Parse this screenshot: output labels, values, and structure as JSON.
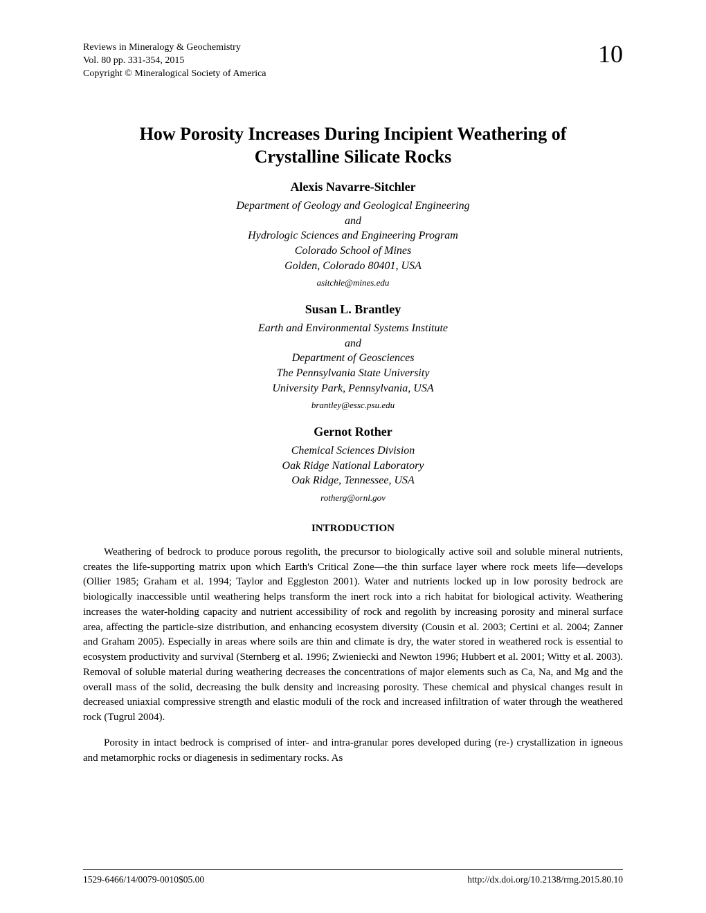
{
  "header": {
    "journal": "Reviews in Mineralogy & Geochemistry",
    "volume_pages": "Vol. 80 pp. 331-354, 2015",
    "copyright": "Copyright © Mineralogical Society of America",
    "chapter_number": "10"
  },
  "title_line1": "How Porosity Increases During Incipient Weathering of",
  "title_line2": "Crystalline Silicate Rocks",
  "authors": [
    {
      "name": "Alexis Navarre-Sitchler",
      "affiliation_lines": [
        "Department of Geology and Geological Engineering",
        "and",
        "Hydrologic Sciences and Engineering Program",
        "Colorado School of Mines",
        "Golden, Colorado 80401, USA"
      ],
      "email": "asitchle@mines.edu"
    },
    {
      "name": "Susan L. Brantley",
      "affiliation_lines": [
        "Earth and Environmental Systems Institute",
        "and",
        "Department of Geosciences",
        "The Pennsylvania State University",
        "University Park, Pennsylvania, USA"
      ],
      "email": "brantley@essc.psu.edu"
    },
    {
      "name": "Gernot Rother",
      "affiliation_lines": [
        "Chemical Sciences Division",
        "Oak Ridge National Laboratory",
        "Oak Ridge, Tennessee, USA"
      ],
      "email": "rotherg@ornl.gov"
    }
  ],
  "section_heading": "INTRODUCTION",
  "paragraphs": [
    "Weathering of bedrock to produce porous regolith, the precursor to biologically active soil and soluble mineral nutrients, creates the life-supporting matrix upon which Earth's Critical Zone—the thin surface layer where rock meets life—develops (Ollier 1985; Graham et al. 1994; Taylor and Eggleston 2001). Water and nutrients locked up in low porosity bedrock are biologically inaccessible until weathering helps transform the inert rock into a rich habitat for biological activity. Weathering increases the water-holding capacity and nutrient accessibility of rock and regolith by increasing porosity and mineral surface area, affecting the particle-size distribution, and enhancing ecosystem diversity (Cousin et al. 2003; Certini et al. 2004; Zanner and Graham 2005). Especially in areas where soils are thin and climate is dry, the water stored in weathered rock is essential to ecosystem productivity and survival (Sternberg et al. 1996; Zwieniecki and Newton 1996; Hubbert et al. 2001; Witty et al. 2003). Removal of soluble material during weathering decreases the concentrations of major elements such as Ca, Na, and Mg and the overall mass of the solid, decreasing the bulk density and increasing porosity. These chemical and physical changes result in decreased uniaxial compressive strength and elastic moduli of the rock and increased infiltration of water through the weathered rock (Tugrul 2004).",
    "Porosity in intact bedrock is comprised of inter- and intra-granular pores developed during (re-) crystallization in igneous and metamorphic rocks or diagenesis in sedimentary rocks. As"
  ],
  "footer": {
    "left": "1529-6466/14/0079-0010$05.00",
    "right": "http://dx.doi.org/10.2138/rmg.2015.80.10"
  }
}
